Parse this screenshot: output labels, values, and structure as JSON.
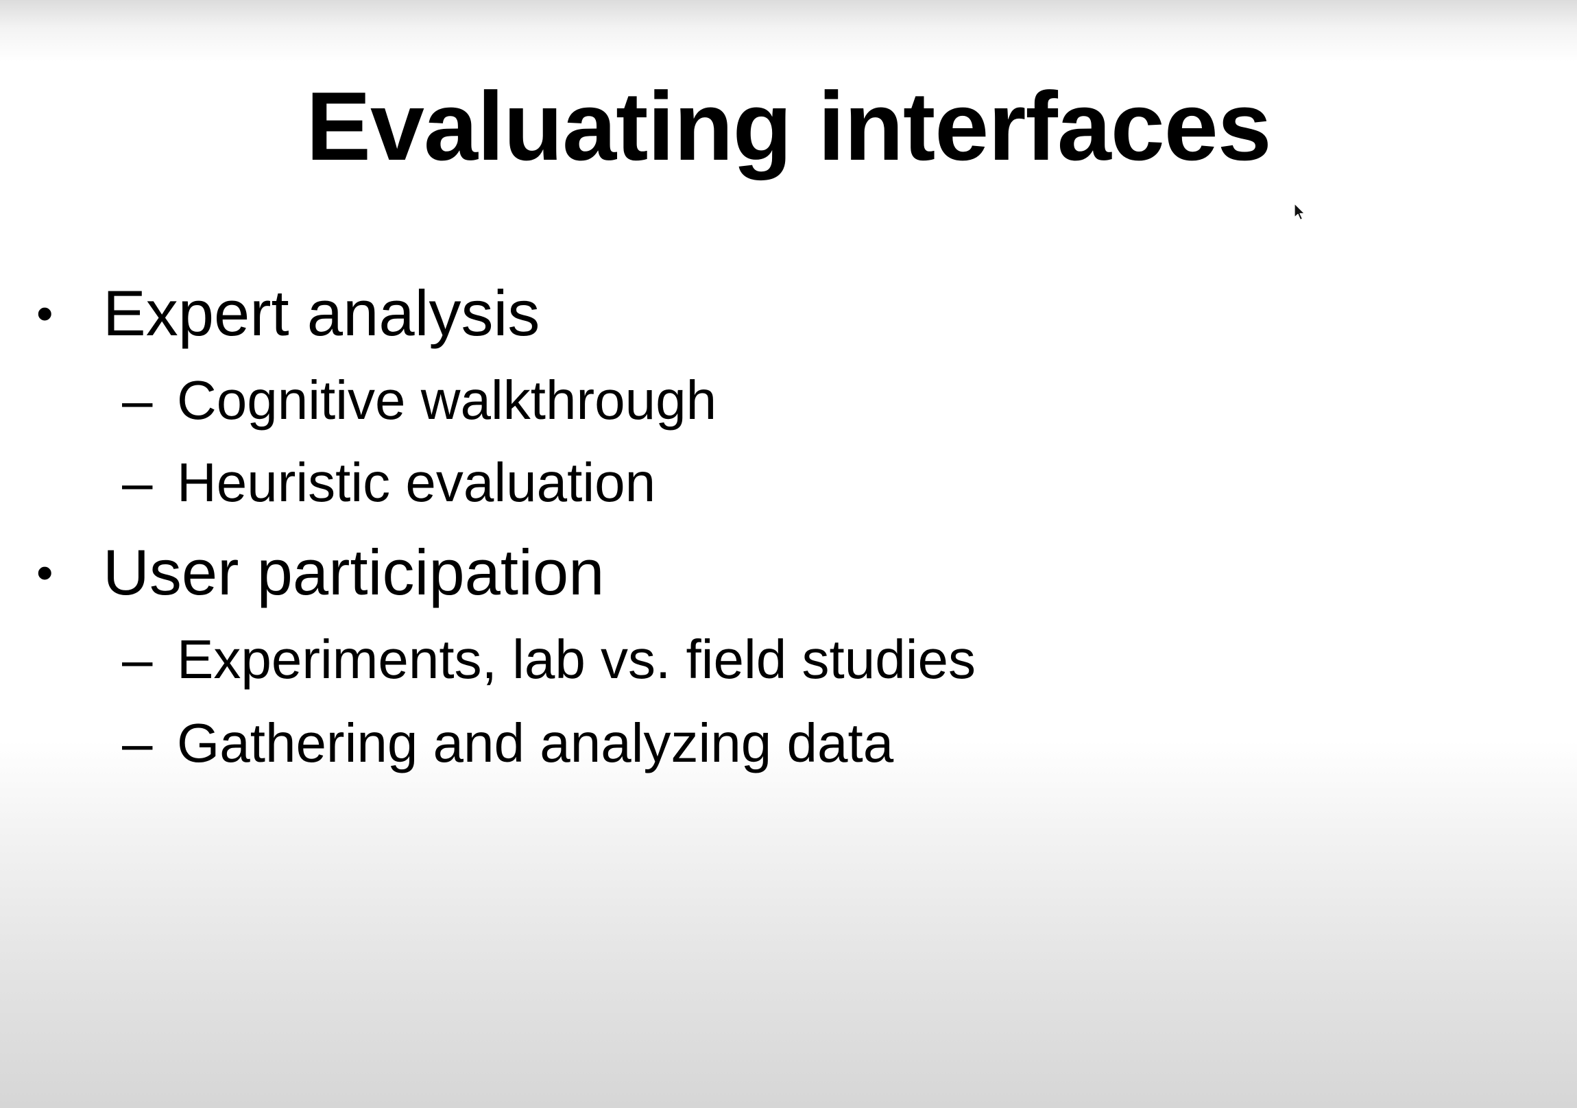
{
  "slide": {
    "title": "Evaluating interfaces",
    "bullets": [
      {
        "marker": "•",
        "text": "Expert analysis",
        "sub": [
          {
            "marker": "–",
            "text": "Cognitive walkthrough"
          },
          {
            "marker": "–",
            "text": "Heuristic evaluation"
          }
        ]
      },
      {
        "marker": "•",
        "text": "User participation",
        "sub": [
          {
            "marker": "–",
            "text": "Experiments, lab vs. field studies"
          },
          {
            "marker": "–",
            "text": "Gathering and analyzing data"
          }
        ]
      }
    ]
  },
  "icons": {
    "cursor": "mouse-pointer-icon"
  },
  "colors": {
    "text": "#000000",
    "background": "#ffffff"
  }
}
